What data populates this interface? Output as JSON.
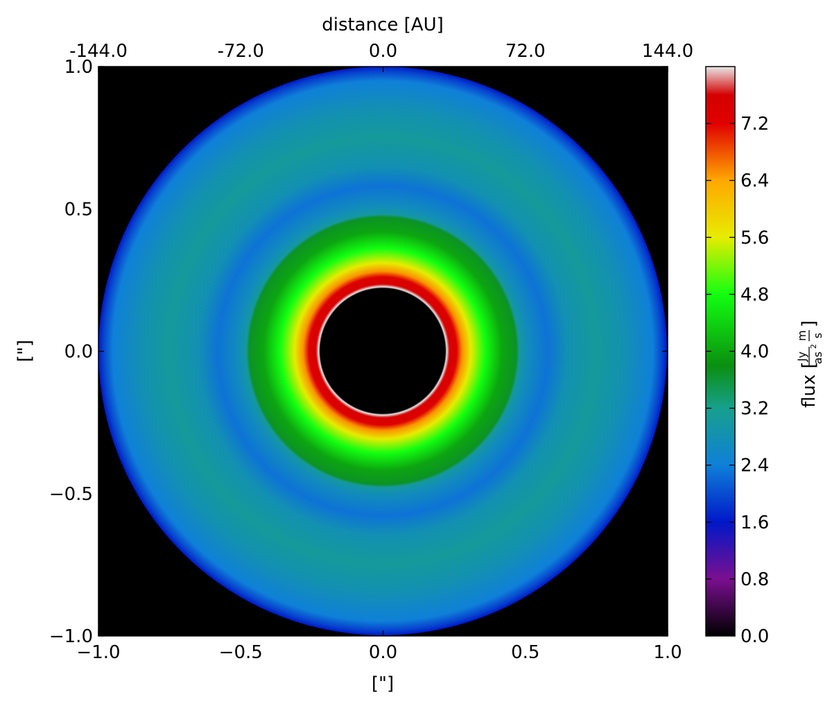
{
  "chart_data": {
    "type": "heatmap",
    "xlabel": "[\"]",
    "ylabel": "[\"]",
    "top_xlabel": "distance [AU]",
    "xlim": [
      -1.0,
      1.0
    ],
    "ylim": [
      -1.0,
      1.0
    ],
    "x_ticks": [
      -1.0,
      -0.5,
      0.0,
      0.5,
      1.0
    ],
    "x_tick_labels": [
      "−1.0",
      "−0.5",
      "0.0",
      "0.5",
      "1.0"
    ],
    "y_ticks": [
      1.0,
      0.5,
      0.0,
      -0.5,
      -1.0
    ],
    "y_tick_labels": [
      "1.0",
      "0.5",
      "0.0",
      "−0.5",
      "−1.0"
    ],
    "top_ticks": [
      -144.0,
      -72.0,
      0.0,
      72.0,
      144.0
    ],
    "top_tick_labels": [
      "-144.0",
      "-72.0",
      "0.0",
      "72.0",
      "144.0"
    ],
    "colorbar": {
      "label_main": "flux [",
      "label_num": "Jy",
      "label_den": "as",
      "label_den_exp": "2",
      "label_unit_num": "m",
      "label_unit_den": "s",
      "label_close": "]",
      "range": [
        0.0,
        8.0
      ],
      "ticks": [
        0.0,
        0.8,
        1.6,
        2.4,
        3.2,
        4.0,
        4.8,
        5.6,
        6.4,
        7.2
      ],
      "tick_labels": [
        "0.0",
        "0.8",
        "1.6",
        "2.4",
        "3.2",
        "4.0",
        "4.8",
        "5.6",
        "6.4",
        "7.2"
      ],
      "stops": [
        {
          "v": 0.0,
          "color": "#000000"
        },
        {
          "v": 0.8,
          "color": "#7a0f8f"
        },
        {
          "v": 1.6,
          "color": "#0018c8"
        },
        {
          "v": 2.4,
          "color": "#0f80d8"
        },
        {
          "v": 3.2,
          "color": "#17a08c"
        },
        {
          "v": 3.8,
          "color": "#0a8f10"
        },
        {
          "v": 4.8,
          "color": "#12ff10"
        },
        {
          "v": 5.6,
          "color": "#e6ec00"
        },
        {
          "v": 6.4,
          "color": "#ffa800"
        },
        {
          "v": 7.2,
          "color": "#e00000"
        },
        {
          "v": 7.6,
          "color": "#d40000"
        },
        {
          "v": 8.0,
          "color": "#e8e8e8"
        }
      ]
    },
    "radial_profile": [
      {
        "r": 0.0,
        "v": 0.0
      },
      {
        "r": 0.22,
        "v": 0.0
      },
      {
        "r": 0.225,
        "v": 8.0
      },
      {
        "r": 0.235,
        "v": 7.5
      },
      {
        "r": 0.26,
        "v": 7.3
      },
      {
        "r": 0.28,
        "v": 6.5
      },
      {
        "r": 0.31,
        "v": 5.6
      },
      {
        "r": 0.36,
        "v": 4.8
      },
      {
        "r": 0.42,
        "v": 4.0
      },
      {
        "r": 0.47,
        "v": 3.7
      },
      {
        "r": 0.48,
        "v": 3.0
      },
      {
        "r": 0.51,
        "v": 2.7
      },
      {
        "r": 0.58,
        "v": 2.3
      },
      {
        "r": 0.65,
        "v": 2.8
      },
      {
        "r": 0.75,
        "v": 3.05
      },
      {
        "r": 0.85,
        "v": 2.8
      },
      {
        "r": 0.95,
        "v": 2.4
      },
      {
        "r": 0.985,
        "v": 1.9
      },
      {
        "r": 1.0,
        "v": 1.6
      }
    ],
    "background_value": 0.0
  }
}
